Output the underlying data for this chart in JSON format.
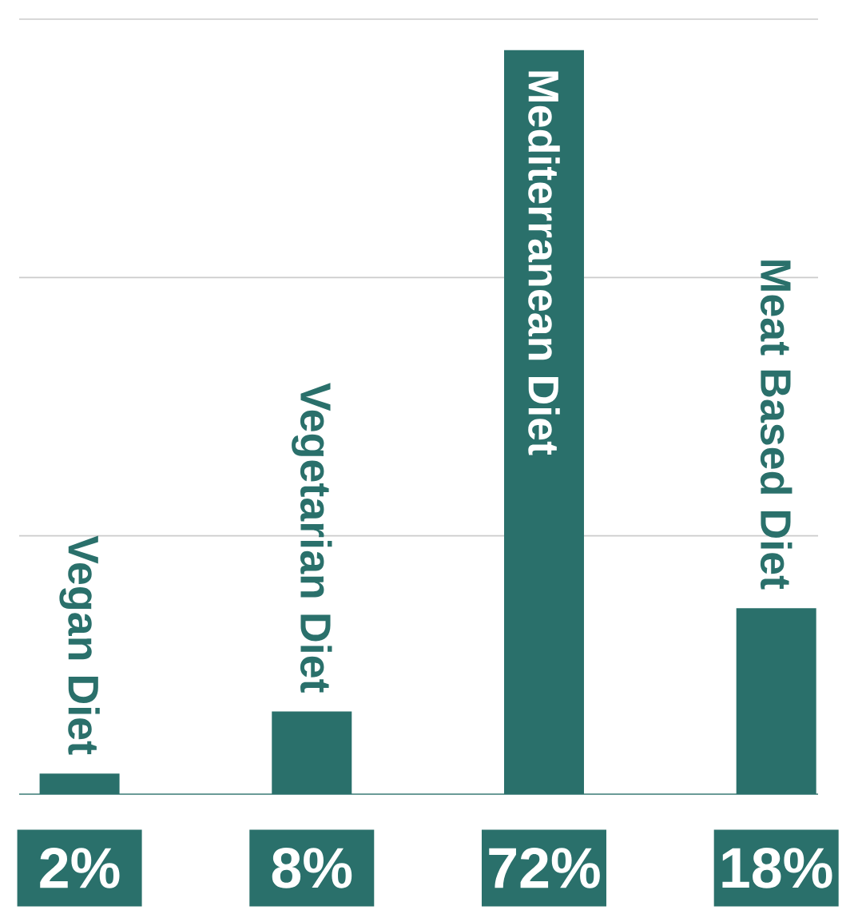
{
  "chart_data": {
    "type": "bar",
    "categories": [
      "Vegan Diet",
      "Vegetarian Diet",
      "Mediterranean Diet",
      "Meat Based Diet"
    ],
    "values": [
      2,
      8,
      72,
      18
    ],
    "value_labels": [
      "2%",
      "8%",
      "72%",
      "18%"
    ],
    "color": "#2a706b",
    "ylim": [
      0,
      75
    ],
    "yticks": [
      {
        "value": 0,
        "label": null
      },
      {
        "value": 25,
        "label": null
      },
      {
        "value": 50,
        "label": null
      },
      {
        "value": 75,
        "label": null
      }
    ],
    "grid": "y"
  }
}
